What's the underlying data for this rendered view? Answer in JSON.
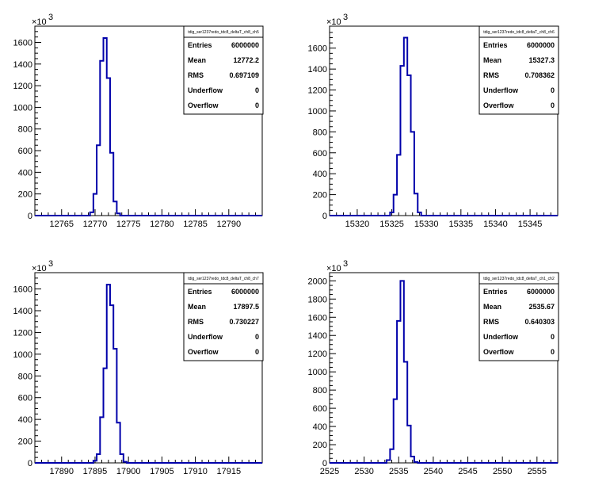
{
  "colors": {
    "histogram": "#0000aa",
    "axis": "#000000",
    "background": "#ffffff"
  },
  "chart_data": [
    {
      "type": "histogram",
      "stats_title": "tdig_ser1237redo_tdc8_deltaT_ch8_ch5",
      "stats": [
        {
          "label": "Entries",
          "value": "6000000"
        },
        {
          "label": "Mean",
          "value": "12772.2"
        },
        {
          "label": "RMS",
          "value": "0.697109"
        },
        {
          "label": "Underflow",
          "value": "0"
        },
        {
          "label": "Overflow",
          "value": "0"
        }
      ],
      "y_exponent": "×10",
      "y_exponent_power": "3",
      "xlim": [
        12761,
        12795
      ],
      "ylim": [
        0,
        1750
      ],
      "x_ticks": [
        12765,
        12770,
        12775,
        12780,
        12785,
        12790
      ],
      "y_ticks": [
        0,
        200,
        400,
        600,
        800,
        1000,
        1200,
        1400,
        1600
      ],
      "bin_width": 0.5,
      "bins": [
        {
          "x": 12769.5,
          "y": 30
        },
        {
          "x": 12770.0,
          "y": 200
        },
        {
          "x": 12770.5,
          "y": 650
        },
        {
          "x": 12771.0,
          "y": 1430
        },
        {
          "x": 12771.5,
          "y": 1640
        },
        {
          "x": 12772.0,
          "y": 1270
        },
        {
          "x": 12772.5,
          "y": 580
        },
        {
          "x": 12773.0,
          "y": 130
        },
        {
          "x": 12773.5,
          "y": 20
        }
      ]
    },
    {
      "type": "histogram",
      "stats_title": "tdig_ser1237redo_tdc8_deltaT_ch8_ch6",
      "stats": [
        {
          "label": "Entries",
          "value": "6000000"
        },
        {
          "label": "Mean",
          "value": "15327.3"
        },
        {
          "label": "RMS",
          "value": "0.708362"
        },
        {
          "label": "Underflow",
          "value": "0"
        },
        {
          "label": "Overflow",
          "value": "0"
        }
      ],
      "y_exponent": "×10",
      "y_exponent_power": "3",
      "xlim": [
        15316,
        15349
      ],
      "ylim": [
        0,
        1810
      ],
      "x_ticks": [
        15320,
        15325,
        15330,
        15335,
        15340,
        15345
      ],
      "y_ticks": [
        0,
        200,
        400,
        600,
        800,
        1000,
        1200,
        1400,
        1600
      ],
      "bin_width": 0.5,
      "bins": [
        {
          "x": 15325.0,
          "y": 30
        },
        {
          "x": 15325.5,
          "y": 200
        },
        {
          "x": 15326.0,
          "y": 580
        },
        {
          "x": 15326.5,
          "y": 1430
        },
        {
          "x": 15327.0,
          "y": 1700
        },
        {
          "x": 15327.5,
          "y": 1340
        },
        {
          "x": 15328.0,
          "y": 800
        },
        {
          "x": 15328.5,
          "y": 210
        },
        {
          "x": 15329.0,
          "y": 30
        }
      ]
    },
    {
      "type": "histogram",
      "stats_title": "tdig_ser1237redo_tdc8_deltaT_ch8_ch7",
      "stats": [
        {
          "label": "Entries",
          "value": "6000000"
        },
        {
          "label": "Mean",
          "value": "17897.5"
        },
        {
          "label": "RMS",
          "value": "0.730227"
        },
        {
          "label": "Underflow",
          "value": "0"
        },
        {
          "label": "Overflow",
          "value": "0"
        }
      ],
      "y_exponent": "×10",
      "y_exponent_power": "3",
      "xlim": [
        17886,
        17920
      ],
      "ylim": [
        0,
        1750
      ],
      "x_ticks": [
        17890,
        17895,
        17900,
        17905,
        17910,
        17915
      ],
      "y_ticks": [
        0,
        200,
        400,
        600,
        800,
        1000,
        1200,
        1400,
        1600
      ],
      "bin_width": 0.5,
      "bins": [
        {
          "x": 17895.0,
          "y": 20
        },
        {
          "x": 17895.5,
          "y": 80
        },
        {
          "x": 17896.0,
          "y": 420
        },
        {
          "x": 17896.5,
          "y": 870
        },
        {
          "x": 17897.0,
          "y": 1640
        },
        {
          "x": 17897.5,
          "y": 1450
        },
        {
          "x": 17898.0,
          "y": 1050
        },
        {
          "x": 17898.5,
          "y": 370
        },
        {
          "x": 17899.0,
          "y": 80
        },
        {
          "x": 17899.5,
          "y": 10
        }
      ]
    },
    {
      "type": "histogram",
      "stats_title": "tdig_ser1237redo_tdc8_deltaT_ch1_ch2",
      "stats": [
        {
          "label": "Entries",
          "value": "6000000"
        },
        {
          "label": "Mean",
          "value": "2535.67"
        },
        {
          "label": "RMS",
          "value": "0.640303"
        },
        {
          "label": "Underflow",
          "value": "0"
        },
        {
          "label": "Overflow",
          "value": "0"
        }
      ],
      "y_exponent": "×10",
      "y_exponent_power": "3",
      "xlim": [
        2525,
        2558
      ],
      "ylim": [
        0,
        2090
      ],
      "x_ticks": [
        2525,
        2530,
        2535,
        2540,
        2545,
        2550,
        2555
      ],
      "y_ticks": [
        0,
        200,
        400,
        600,
        800,
        1000,
        1200,
        1400,
        1600,
        1800,
        2000
      ],
      "bin_width": 0.5,
      "bins": [
        {
          "x": 2533.5,
          "y": 30
        },
        {
          "x": 2534.0,
          "y": 150
        },
        {
          "x": 2534.5,
          "y": 700
        },
        {
          "x": 2535.0,
          "y": 1560
        },
        {
          "x": 2535.5,
          "y": 2000
        },
        {
          "x": 2536.0,
          "y": 1110
        },
        {
          "x": 2536.5,
          "y": 410
        },
        {
          "x": 2537.0,
          "y": 70
        },
        {
          "x": 2537.5,
          "y": 10
        }
      ]
    }
  ]
}
